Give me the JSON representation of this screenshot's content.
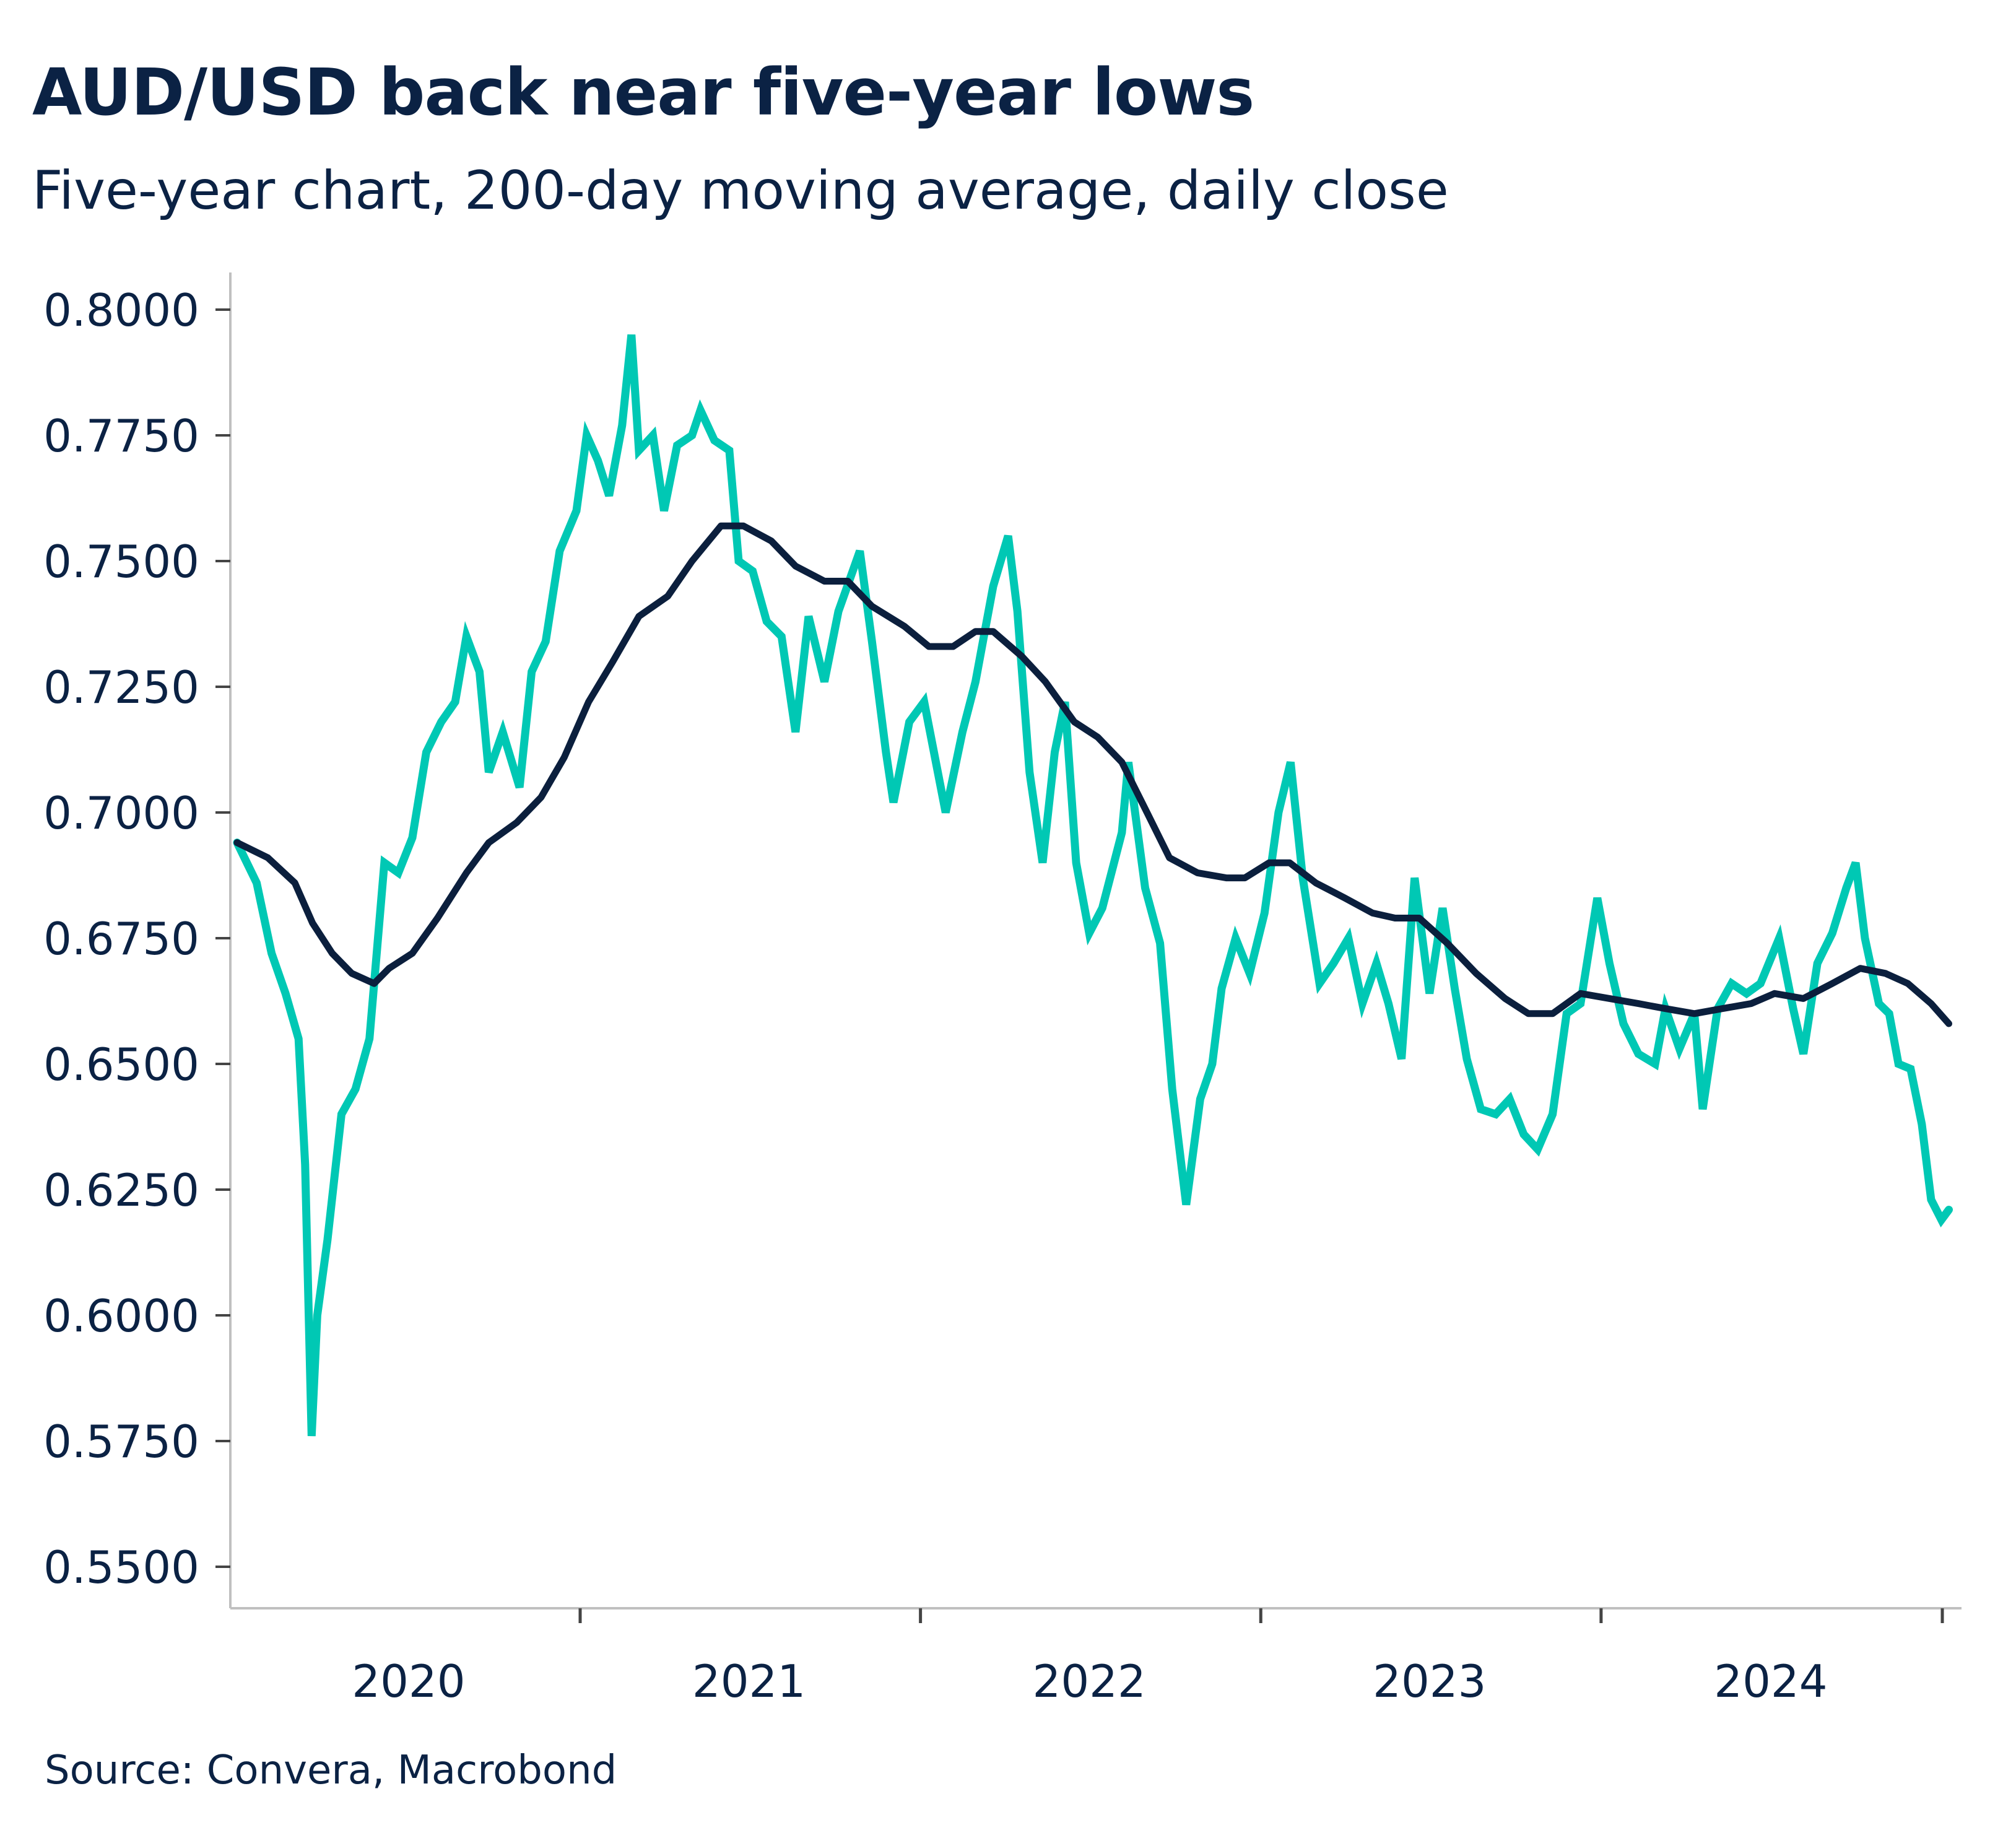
{
  "title": "AUD/USD back near five-year lows",
  "subtitle": "Five-year chart, 200-day moving average, daily close",
  "source": "Source: Convera, Macrobond",
  "colors": {
    "close": "#00c8b4",
    "moving_average": "#0b1f3d",
    "text": "#0b2244",
    "axis": "#c0c0c0"
  },
  "chart_data": {
    "type": "line",
    "title": "AUD/USD back near five-year lows",
    "subtitle": "Five-year chart, 200-day moving average, daily close",
    "ylim": [
      0.55,
      0.8
    ],
    "xlim": [
      "2019-12-30",
      "2025-01-10"
    ],
    "y_ticks": [
      "0.8000",
      "0.7750",
      "0.7500",
      "0.7250",
      "0.7000",
      "0.6750",
      "0.6500",
      "0.6250",
      "0.6000",
      "0.5750",
      "0.5500"
    ],
    "x_tick_labels": [
      "2020",
      "2021",
      "2022",
      "2023",
      "2024"
    ],
    "grid": false,
    "legend": "none",
    "series": [
      {
        "key": "close",
        "points": [
          [
            "2019-12-30",
            0.694
          ],
          [
            "2020-01-20",
            0.686
          ],
          [
            "2020-02-05",
            0.672
          ],
          [
            "2020-02-20",
            0.664
          ],
          [
            "2020-03-05",
            0.655
          ],
          [
            "2020-03-12",
            0.63
          ],
          [
            "2020-03-19",
            0.576
          ],
          [
            "2020-03-25",
            0.6
          ],
          [
            "2020-04-05",
            0.615
          ],
          [
            "2020-04-20",
            0.64
          ],
          [
            "2020-05-05",
            0.645
          ],
          [
            "2020-05-20",
            0.655
          ],
          [
            "2020-06-05",
            0.69
          ],
          [
            "2020-06-20",
            0.688
          ],
          [
            "2020-07-05",
            0.695
          ],
          [
            "2020-07-20",
            0.712
          ],
          [
            "2020-08-05",
            0.718
          ],
          [
            "2020-08-20",
            0.722
          ],
          [
            "2020-09-01",
            0.735
          ],
          [
            "2020-09-15",
            0.728
          ],
          [
            "2020-09-25",
            0.708
          ],
          [
            "2020-10-10",
            0.716
          ],
          [
            "2020-10-28",
            0.705
          ],
          [
            "2020-11-10",
            0.728
          ],
          [
            "2020-11-25",
            0.734
          ],
          [
            "2020-12-10",
            0.752
          ],
          [
            "2020-12-28",
            0.76
          ],
          [
            "2021-01-08",
            0.775
          ],
          [
            "2021-01-20",
            0.77
          ],
          [
            "2021-02-01",
            0.763
          ],
          [
            "2021-02-15",
            0.777
          ],
          [
            "2021-02-25",
            0.795
          ],
          [
            "2021-03-05",
            0.772
          ],
          [
            "2021-03-20",
            0.775
          ],
          [
            "2021-04-01",
            0.76
          ],
          [
            "2021-04-15",
            0.773
          ],
          [
            "2021-05-01",
            0.775
          ],
          [
            "2021-05-10",
            0.78
          ],
          [
            "2021-05-25",
            0.774
          ],
          [
            "2021-06-10",
            0.772
          ],
          [
            "2021-06-20",
            0.75
          ],
          [
            "2021-07-05",
            0.748
          ],
          [
            "2021-07-20",
            0.738
          ],
          [
            "2021-08-05",
            0.735
          ],
          [
            "2021-08-20",
            0.716
          ],
          [
            "2021-09-03",
            0.739
          ],
          [
            "2021-09-20",
            0.726
          ],
          [
            "2021-10-05",
            0.74
          ],
          [
            "2021-10-28",
            0.752
          ],
          [
            "2021-11-10",
            0.734
          ],
          [
            "2021-11-25",
            0.712
          ],
          [
            "2021-12-03",
            0.702
          ],
          [
            "2021-12-20",
            0.718
          ],
          [
            "2022-01-05",
            0.722
          ],
          [
            "2022-01-28",
            0.7
          ],
          [
            "2022-02-15",
            0.716
          ],
          [
            "2022-03-01",
            0.726
          ],
          [
            "2022-03-10",
            0.735
          ],
          [
            "2022-03-20",
            0.745
          ],
          [
            "2022-04-05",
            0.755
          ],
          [
            "2022-04-15",
            0.74
          ],
          [
            "2022-04-28",
            0.708
          ],
          [
            "2022-05-12",
            0.69
          ],
          [
            "2022-05-25",
            0.712
          ],
          [
            "2022-06-05",
            0.722
          ],
          [
            "2022-06-17",
            0.69
          ],
          [
            "2022-07-01",
            0.676
          ],
          [
            "2022-07-15",
            0.681
          ],
          [
            "2022-08-05",
            0.696
          ],
          [
            "2022-08-12",
            0.71
          ],
          [
            "2022-08-30",
            0.685
          ],
          [
            "2022-09-15",
            0.674
          ],
          [
            "2022-09-28",
            0.645
          ],
          [
            "2022-10-13",
            0.622
          ],
          [
            "2022-10-28",
            0.643
          ],
          [
            "2022-11-10",
            0.65
          ],
          [
            "2022-11-20",
            0.665
          ],
          [
            "2022-12-05",
            0.675
          ],
          [
            "2022-12-20",
            0.668
          ],
          [
            "2023-01-05",
            0.68
          ],
          [
            "2023-01-20",
            0.7
          ],
          [
            "2023-02-02",
            0.71
          ],
          [
            "2023-02-15",
            0.687
          ],
          [
            "2023-03-05",
            0.666
          ],
          [
            "2023-03-20",
            0.67
          ],
          [
            "2023-04-05",
            0.675
          ],
          [
            "2023-04-20",
            0.662
          ],
          [
            "2023-05-05",
            0.67
          ],
          [
            "2023-05-18",
            0.662
          ],
          [
            "2023-06-01",
            0.651
          ],
          [
            "2023-06-15",
            0.687
          ],
          [
            "2023-07-01",
            0.664
          ],
          [
            "2023-07-15",
            0.681
          ],
          [
            "2023-07-28",
            0.665
          ],
          [
            "2023-08-10",
            0.651
          ],
          [
            "2023-08-25",
            0.641
          ],
          [
            "2023-09-10",
            0.64
          ],
          [
            "2023-09-25",
            0.643
          ],
          [
            "2023-10-10",
            0.636
          ],
          [
            "2023-10-25",
            0.633
          ],
          [
            "2023-11-10",
            0.64
          ],
          [
            "2023-11-25",
            0.66
          ],
          [
            "2023-12-10",
            0.662
          ],
          [
            "2023-12-28",
            0.683
          ],
          [
            "2024-01-10",
            0.67
          ],
          [
            "2024-01-25",
            0.658
          ],
          [
            "2024-02-10",
            0.652
          ],
          [
            "2024-02-28",
            0.65
          ],
          [
            "2024-03-10",
            0.661
          ],
          [
            "2024-03-25",
            0.653
          ],
          [
            "2024-04-10",
            0.66
          ],
          [
            "2024-04-19",
            0.641
          ],
          [
            "2024-05-05",
            0.661
          ],
          [
            "2024-05-20",
            0.666
          ],
          [
            "2024-06-05",
            0.664
          ],
          [
            "2024-06-20",
            0.666
          ],
          [
            "2024-07-10",
            0.675
          ],
          [
            "2024-07-25",
            0.661
          ],
          [
            "2024-08-05",
            0.652
          ],
          [
            "2024-08-20",
            0.67
          ],
          [
            "2024-09-05",
            0.676
          ],
          [
            "2024-09-20",
            0.685
          ],
          [
            "2024-09-30",
            0.69
          ],
          [
            "2024-10-10",
            0.675
          ],
          [
            "2024-10-25",
            0.662
          ],
          [
            "2024-11-05",
            0.66
          ],
          [
            "2024-11-15",
            0.65
          ],
          [
            "2024-11-28",
            0.649
          ],
          [
            "2024-12-10",
            0.638
          ],
          [
            "2024-12-20",
            0.623
          ],
          [
            "2024-12-31",
            0.619
          ],
          [
            "2025-01-08",
            0.621
          ]
        ]
      },
      {
        "key": "moving_average",
        "points": [
          [
            "2019-12-30",
            0.694
          ],
          [
            "2020-02-01",
            0.691
          ],
          [
            "2020-03-01",
            0.686
          ],
          [
            "2020-03-20",
            0.678
          ],
          [
            "2020-04-10",
            0.672
          ],
          [
            "2020-05-01",
            0.668
          ],
          [
            "2020-05-25",
            0.666
          ],
          [
            "2020-06-10",
            0.669
          ],
          [
            "2020-07-05",
            0.672
          ],
          [
            "2020-08-01",
            0.679
          ],
          [
            "2020-09-01",
            0.688
          ],
          [
            "2020-09-25",
            0.694
          ],
          [
            "2020-10-25",
            0.698
          ],
          [
            "2020-11-20",
            0.703
          ],
          [
            "2020-12-15",
            0.711
          ],
          [
            "2021-01-10",
            0.722
          ],
          [
            "2021-02-05",
            0.73
          ],
          [
            "2021-03-05",
            0.739
          ],
          [
            "2021-04-05",
            0.743
          ],
          [
            "2021-05-01",
            0.75
          ],
          [
            "2021-06-01",
            0.757
          ],
          [
            "2021-06-25",
            0.757
          ],
          [
            "2021-07-25",
            0.754
          ],
          [
            "2021-08-20",
            0.749
          ],
          [
            "2021-09-20",
            0.746
          ],
          [
            "2021-10-15",
            0.746
          ],
          [
            "2021-11-10",
            0.741
          ],
          [
            "2021-12-15",
            0.737
          ],
          [
            "2022-01-10",
            0.733
          ],
          [
            "2022-02-05",
            0.733
          ],
          [
            "2022-03-01",
            0.736
          ],
          [
            "2022-03-20",
            0.736
          ],
          [
            "2022-04-20",
            0.731
          ],
          [
            "2022-05-15",
            0.726
          ],
          [
            "2022-06-15",
            0.718
          ],
          [
            "2022-07-10",
            0.715
          ],
          [
            "2022-08-05",
            0.71
          ],
          [
            "2022-09-01",
            0.7
          ],
          [
            "2022-09-25",
            0.691
          ],
          [
            "2022-10-25",
            0.688
          ],
          [
            "2022-11-25",
            0.687
          ],
          [
            "2022-12-15",
            0.687
          ],
          [
            "2023-01-10",
            0.69
          ],
          [
            "2023-02-01",
            0.69
          ],
          [
            "2023-03-01",
            0.686
          ],
          [
            "2023-04-01",
            0.683
          ],
          [
            "2023-05-01",
            0.68
          ],
          [
            "2023-05-25",
            0.679
          ],
          [
            "2023-06-20",
            0.679
          ],
          [
            "2023-07-20",
            0.674
          ],
          [
            "2023-08-20",
            0.668
          ],
          [
            "2023-09-20",
            0.663
          ],
          [
            "2023-10-15",
            0.66
          ],
          [
            "2023-11-10",
            0.66
          ],
          [
            "2023-12-10",
            0.664
          ],
          [
            "2024-01-10",
            0.663
          ],
          [
            "2024-02-10",
            0.662
          ],
          [
            "2024-03-10",
            0.661
          ],
          [
            "2024-04-10",
            0.66
          ],
          [
            "2024-05-10",
            0.661
          ],
          [
            "2024-06-10",
            0.662
          ],
          [
            "2024-07-05",
            0.664
          ],
          [
            "2024-08-05",
            0.663
          ],
          [
            "2024-09-05",
            0.666
          ],
          [
            "2024-10-05",
            0.669
          ],
          [
            "2024-11-01",
            0.668
          ],
          [
            "2024-11-25",
            0.666
          ],
          [
            "2024-12-20",
            0.662
          ],
          [
            "2025-01-08",
            0.658
          ]
        ]
      }
    ]
  }
}
